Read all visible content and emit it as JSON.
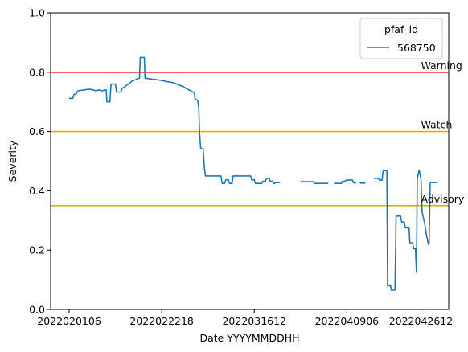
{
  "chart_data": {
    "type": "line",
    "xlabel": "Date YYYYMMDDHH",
    "ylabel": "Severity",
    "ylim": [
      0,
      1
    ],
    "xlim": [
      -0.05,
      1.025
    ],
    "y_ticks": [
      0.0,
      0.2,
      0.4,
      0.6,
      0.8,
      1.0
    ],
    "y_tick_labels": [
      "0.0",
      "0.2",
      "0.4",
      "0.6",
      "0.8",
      "1.0"
    ],
    "x_ticks": [
      0.0,
      0.25,
      0.5,
      0.75,
      0.95
    ],
    "x_tick_labels": [
      "2022020106",
      "2022022218",
      "2022031612",
      "2022040906",
      "2022042612"
    ],
    "grid": false,
    "legend": {
      "title": "pfaf_id",
      "placement": "top-right"
    },
    "series": [
      {
        "name": "568750",
        "color": "#1f77b4",
        "segments": [
          [
            [
              0.0,
              0.712
            ],
            [
              0.01,
              0.712
            ],
            [
              0.013,
              0.725
            ],
            [
              0.02,
              0.728
            ],
            [
              0.023,
              0.737
            ],
            [
              0.04,
              0.74
            ],
            [
              0.05,
              0.742
            ],
            [
              0.06,
              0.742
            ],
            [
              0.072,
              0.737
            ],
            [
              0.08,
              0.74
            ],
            [
              0.09,
              0.737
            ],
            [
              0.095,
              0.74
            ],
            [
              0.1,
              0.74
            ],
            [
              0.102,
              0.7
            ],
            [
              0.11,
              0.7
            ],
            [
              0.113,
              0.76
            ],
            [
              0.125,
              0.76
            ],
            [
              0.128,
              0.733
            ],
            [
              0.14,
              0.733
            ],
            [
              0.143,
              0.746
            ],
            [
              0.15,
              0.75
            ],
            [
              0.155,
              0.756
            ],
            [
              0.16,
              0.76
            ],
            [
              0.165,
              0.765
            ],
            [
              0.17,
              0.77
            ],
            [
              0.18,
              0.775
            ],
            [
              0.185,
              0.778
            ],
            [
              0.19,
              0.78
            ],
            [
              0.192,
              0.85
            ],
            [
              0.203,
              0.85
            ],
            [
              0.205,
              0.78
            ],
            [
              0.22,
              0.777
            ],
            [
              0.235,
              0.775
            ],
            [
              0.25,
              0.772
            ],
            [
              0.265,
              0.768
            ],
            [
              0.28,
              0.765
            ],
            [
              0.29,
              0.76
            ],
            [
              0.3,
              0.755
            ],
            [
              0.31,
              0.75
            ],
            [
              0.32,
              0.742
            ],
            [
              0.33,
              0.736
            ],
            [
              0.338,
              0.73
            ],
            [
              0.34,
              0.71
            ],
            [
              0.347,
              0.705
            ],
            [
              0.35,
              0.68
            ],
            [
              0.352,
              0.6
            ],
            [
              0.355,
              0.545
            ],
            [
              0.362,
              0.54
            ],
            [
              0.365,
              0.48
            ],
            [
              0.368,
              0.45
            ],
            [
              0.41,
              0.45
            ],
            [
              0.413,
              0.425
            ],
            [
              0.42,
              0.425
            ],
            [
              0.423,
              0.437
            ],
            [
              0.43,
              0.437
            ],
            [
              0.433,
              0.425
            ],
            [
              0.44,
              0.425
            ],
            [
              0.443,
              0.45
            ],
            [
              0.49,
              0.45
            ],
            [
              0.493,
              0.437
            ],
            [
              0.5,
              0.437
            ],
            [
              0.503,
              0.425
            ],
            [
              0.52,
              0.425
            ],
            [
              0.523,
              0.432
            ],
            [
              0.53,
              0.432
            ],
            [
              0.533,
              0.442
            ],
            [
              0.54,
              0.442
            ],
            [
              0.543,
              0.432
            ],
            [
              0.55,
              0.432
            ],
            [
              0.553,
              0.425
            ],
            [
              0.56,
              0.428
            ],
            [
              0.57,
              0.428
            ]
          ],
          [
            [
              0.625,
              0.431
            ],
            [
              0.66,
              0.431
            ],
            [
              0.663,
              0.425
            ],
            [
              0.7,
              0.425
            ]
          ],
          [
            [
              0.715,
              0.425
            ],
            [
              0.735,
              0.425
            ],
            [
              0.738,
              0.432
            ],
            [
              0.745,
              0.432
            ],
            [
              0.748,
              0.436
            ],
            [
              0.765,
              0.436
            ],
            [
              0.768,
              0.427
            ],
            [
              0.775,
              0.427
            ]
          ],
          [
            [
              0.785,
              0.426
            ],
            [
              0.8,
              0.426
            ]
          ],
          [
            [
              0.823,
              0.442
            ],
            [
              0.835,
              0.442
            ],
            [
              0.838,
              0.436
            ],
            [
              0.845,
              0.436
            ],
            [
              0.848,
              0.468
            ],
            [
              0.858,
              0.468
            ],
            [
              0.86,
              0.08
            ],
            [
              0.868,
              0.08
            ],
            [
              0.87,
              0.065
            ],
            [
              0.88,
              0.065
            ],
            [
              0.883,
              0.315
            ],
            [
              0.895,
              0.315
            ],
            [
              0.898,
              0.295
            ],
            [
              0.905,
              0.295
            ],
            [
              0.908,
              0.275
            ],
            [
              0.918,
              0.275
            ],
            [
              0.92,
              0.225
            ],
            [
              0.928,
              0.225
            ],
            [
              0.93,
              0.205
            ],
            [
              0.935,
              0.205
            ],
            [
              0.938,
              0.125
            ],
            [
              0.94,
              0.44
            ],
            [
              0.945,
              0.47
            ],
            [
              0.95,
              0.44
            ],
            [
              0.953,
              0.33
            ],
            [
              0.96,
              0.29
            ],
            [
              0.965,
              0.25
            ],
            [
              0.97,
              0.22
            ],
            [
              0.972,
              0.22
            ],
            [
              0.975,
              0.428
            ],
            [
              0.995,
              0.428
            ]
          ]
        ]
      }
    ],
    "thresholds": [
      {
        "label": "Warning",
        "value": 0.8,
        "color": "#ff0000"
      },
      {
        "label": "Watch",
        "value": 0.6,
        "color": "#ffa500"
      },
      {
        "label": "Advisory",
        "value": 0.35,
        "color": "#c8be00"
      }
    ]
  }
}
